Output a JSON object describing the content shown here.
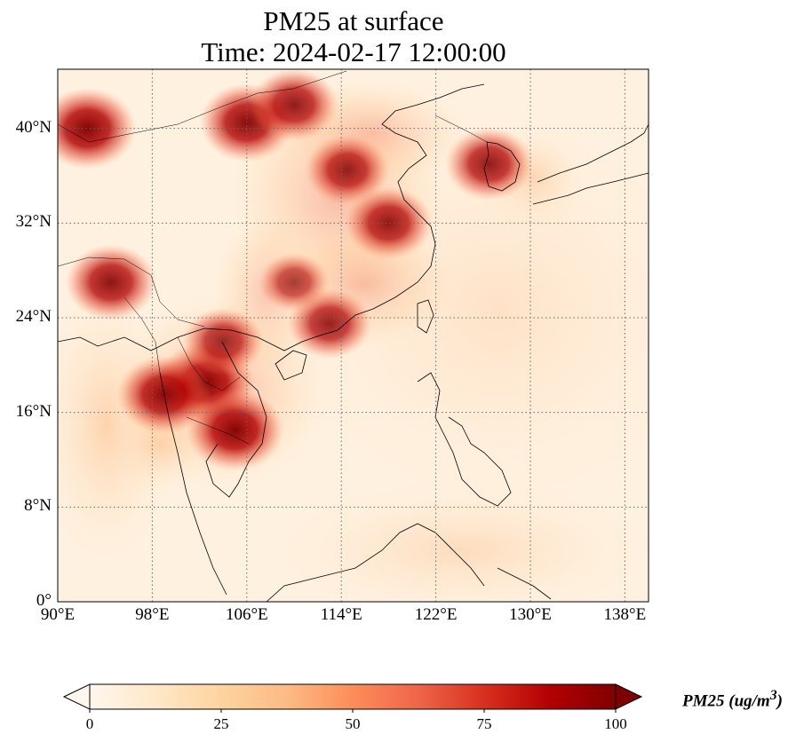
{
  "title": {
    "line1": "PM25 at surface",
    "line2": "Time: 2024-02-17 12:00:00"
  },
  "map": {
    "projection": "plate-carree",
    "lon_range": [
      90,
      140
    ],
    "lat_range": [
      0,
      45
    ],
    "gridlines": true,
    "gridline_style": "dotted",
    "lat_ticks": [
      "0°",
      "8°N",
      "16°N",
      "24°N",
      "32°N",
      "40°N"
    ],
    "lon_ticks": [
      "90°E",
      "98°E",
      "106°E",
      "114°E",
      "122°E",
      "130°E",
      "138°E"
    ],
    "lat_tick_values": [
      0,
      8,
      16,
      24,
      32,
      40
    ],
    "lon_tick_values": [
      90,
      98,
      106,
      114,
      122,
      130,
      138
    ],
    "colormap": "OrRd",
    "hotspots": [
      {
        "lon": 92.5,
        "lat": 40.0,
        "value": 100
      },
      {
        "lon": 106.0,
        "lat": 40.5,
        "value": 95
      },
      {
        "lon": 110.0,
        "lat": 42.0,
        "value": 85
      },
      {
        "lon": 114.5,
        "lat": 36.5,
        "value": 80
      },
      {
        "lon": 118.0,
        "lat": 32.0,
        "value": 85
      },
      {
        "lon": 102.5,
        "lat": 18.5,
        "value": 100
      },
      {
        "lon": 105.0,
        "lat": 14.5,
        "value": 100
      },
      {
        "lon": 99.0,
        "lat": 17.5,
        "value": 95
      },
      {
        "lon": 94.5,
        "lat": 27.0,
        "value": 90
      },
      {
        "lon": 104.0,
        "lat": 22.0,
        "value": 75
      },
      {
        "lon": 113.0,
        "lat": 23.5,
        "value": 80
      },
      {
        "lon": 110.0,
        "lat": 27.0,
        "value": 60
      },
      {
        "lon": 126.5,
        "lat": 37.0,
        "value": 85
      }
    ]
  },
  "colorbar": {
    "min": 0,
    "max": 100,
    "ticks": [
      "0",
      "25",
      "50",
      "75",
      "100"
    ],
    "tick_values": [
      0,
      25,
      50,
      75,
      100
    ],
    "extend": "both",
    "label": "PM25 (ug/m",
    "label_sup": "3",
    "label_close": ")"
  }
}
